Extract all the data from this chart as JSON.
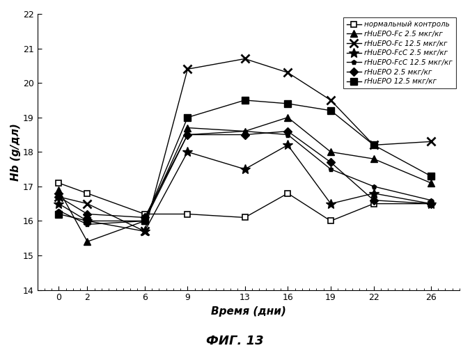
{
  "x": [
    0,
    2,
    6,
    9,
    13,
    16,
    19,
    22,
    26
  ],
  "series": [
    {
      "label": "нормальный контроль",
      "y": [
        17.1,
        16.8,
        16.2,
        16.2,
        16.1,
        16.8,
        16.0,
        16.5,
        16.5
      ],
      "marker": "s",
      "mfc": "white",
      "mec": "black",
      "ms": 6,
      "mew": 1.2
    },
    {
      "label": "rHuEPO-Fc 2.5 мкг/кг",
      "y": [
        16.9,
        15.4,
        16.0,
        18.7,
        18.6,
        19.0,
        18.0,
        17.8,
        17.1
      ],
      "marker": "^",
      "mfc": "black",
      "mec": "black",
      "ms": 7,
      "mew": 1.0
    },
    {
      "label": "rHuEPO-Fc 12.5 мкг/кг",
      "y": [
        16.7,
        16.5,
        15.7,
        20.4,
        20.7,
        20.3,
        19.5,
        18.2,
        18.3
      ],
      "marker": "x",
      "mfc": "black",
      "mec": "black",
      "ms": 8,
      "mew": 2.0
    },
    {
      "label": "rHuEPO-FcC 2.5 мкг/кг",
      "y": [
        16.5,
        16.0,
        15.7,
        18.0,
        17.5,
        18.2,
        16.5,
        16.8,
        16.5
      ],
      "marker": "*",
      "mfc": "black",
      "mec": "black",
      "ms": 10,
      "mew": 1.0
    },
    {
      "label": "rHuEPO-FcC 12.5 мкг/кг",
      "y": [
        16.3,
        15.9,
        16.0,
        18.5,
        18.6,
        18.5,
        17.5,
        17.0,
        16.6
      ],
      "marker": "p",
      "mfc": "black",
      "mec": "black",
      "ms": 5,
      "mew": 1.0
    },
    {
      "label": "rHuEPO 2.5 мкг/кг",
      "y": [
        16.7,
        16.2,
        16.1,
        18.5,
        18.5,
        18.6,
        17.7,
        16.6,
        16.5
      ],
      "marker": "D",
      "mfc": "black",
      "mec": "black",
      "ms": 6,
      "mew": 1.0
    },
    {
      "label": "rHuEPO 12.5 мкг/кг",
      "y": [
        16.2,
        16.0,
        16.0,
        19.0,
        19.5,
        19.4,
        19.2,
        18.2,
        17.3
      ],
      "marker": "s",
      "mfc": "black",
      "mec": "black",
      "ms": 7,
      "mew": 1.0
    }
  ],
  "xlabel": "Время (дни)",
  "ylabel": "Hb (g/дл)",
  "figcaption": "ФИГ. 13",
  "ylim": [
    14,
    22
  ],
  "yticks": [
    14,
    15,
    16,
    17,
    18,
    19,
    20,
    21,
    22
  ],
  "xticks": [
    0,
    2,
    6,
    9,
    13,
    16,
    19,
    22,
    26
  ]
}
